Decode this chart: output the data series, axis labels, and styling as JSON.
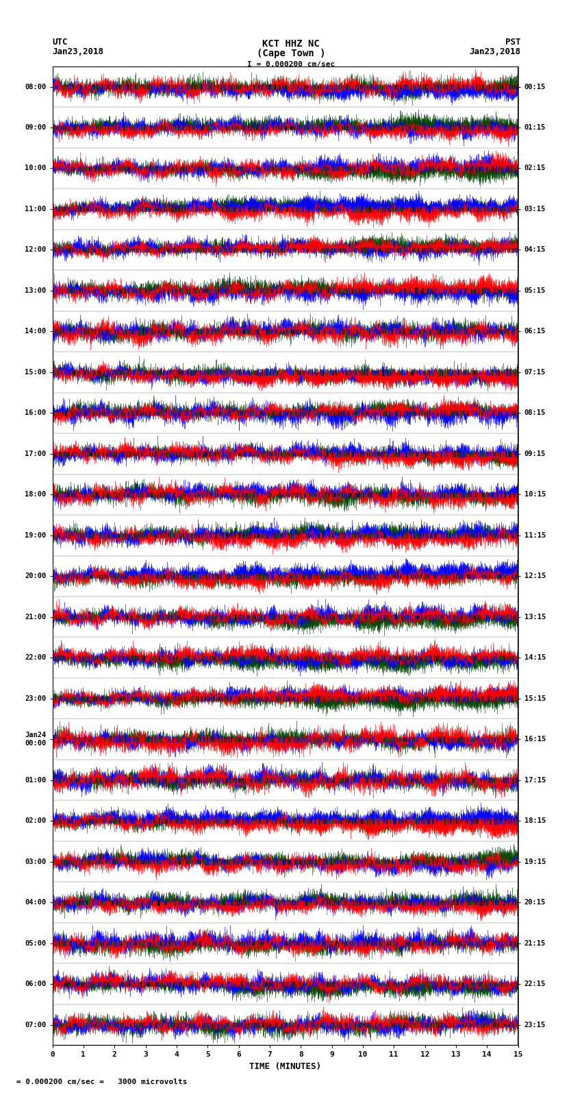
{
  "title_line1": "KCT HHZ NC",
  "title_line2": "(Cape Town )",
  "scale_label": "I = 0.000200 cm/sec",
  "left_label_top": "UTC",
  "left_label_date": "Jan23,2018",
  "right_label_top": "PST",
  "right_label_date": "Jan23,2018",
  "bottom_label": "TIME (MINUTES)",
  "bottom_note": " = 0.000200 cm/sec =   3000 microvolts",
  "left_times": [
    "08:00",
    "09:00",
    "10:00",
    "11:00",
    "12:00",
    "13:00",
    "14:00",
    "15:00",
    "16:00",
    "17:00",
    "18:00",
    "19:00",
    "20:00",
    "21:00",
    "22:00",
    "23:00",
    "Jan24\n00:00",
    "01:00",
    "02:00",
    "03:00",
    "04:00",
    "05:00",
    "06:00",
    "07:00"
  ],
  "right_times": [
    "00:15",
    "01:15",
    "02:15",
    "03:15",
    "04:15",
    "05:15",
    "06:15",
    "07:15",
    "08:15",
    "09:15",
    "10:15",
    "11:15",
    "12:15",
    "13:15",
    "14:15",
    "15:15",
    "16:15",
    "17:15",
    "18:15",
    "19:15",
    "20:15",
    "21:15",
    "22:15",
    "23:15"
  ],
  "n_traces": 24,
  "trace_duration_minutes": 15,
  "x_ticks": [
    0,
    1,
    2,
    3,
    4,
    5,
    6,
    7,
    8,
    9,
    10,
    11,
    12,
    13,
    14,
    15
  ],
  "x_lim": [
    0,
    15
  ],
  "bg_color": "white",
  "fig_width": 8.5,
  "fig_height": 16.13
}
